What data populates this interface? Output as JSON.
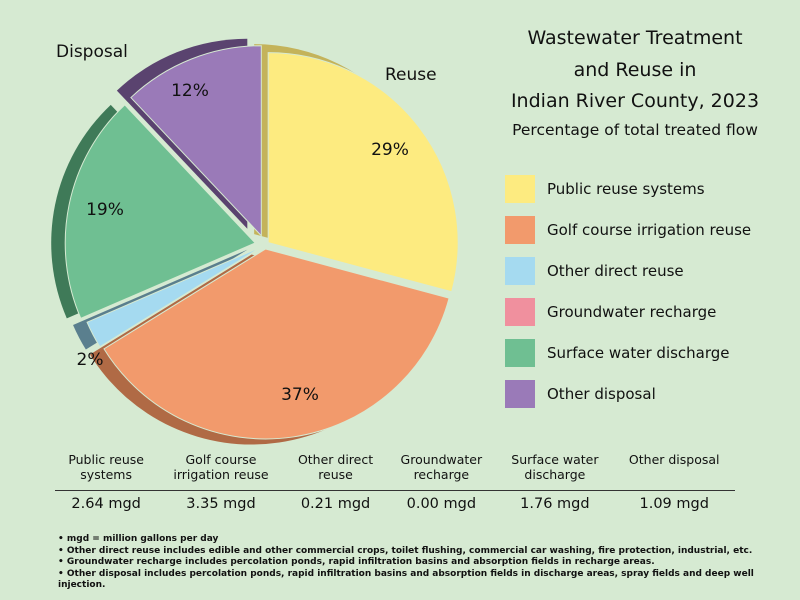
{
  "title_lines": [
    "Wastewater Treatment",
    "and Reuse in",
    "Indian River County, 2023"
  ],
  "subtitle": "Percentage of total treated flow",
  "callouts": {
    "reuse": "Reuse",
    "disposal": "Disposal"
  },
  "chart_data": {
    "type": "pie",
    "title": "Wastewater Treatment and Reuse in Indian River County, 2023",
    "subtitle": "Percentage of total treated flow",
    "slices": [
      {
        "name": "Public reuse systems",
        "percent_label": "29%",
        "mgd": 2.64,
        "color": "#fdeb80",
        "side_color": "#c4b35a",
        "group": "Reuse"
      },
      {
        "name": "Golf course irrigation reuse",
        "percent_label": "37%",
        "mgd": 3.35,
        "color": "#f29a6c",
        "side_color": "#b06a45",
        "group": "Reuse"
      },
      {
        "name": "Other direct reuse",
        "percent_label": "",
        "mgd": 0.21,
        "color": "#a5daf0",
        "side_color": "#5a7f8e",
        "group": "Reuse"
      },
      {
        "name": "Groundwater recharge",
        "percent_label": "",
        "mgd": 0.0,
        "color": "#f0909e",
        "side_color": "#a05a64",
        "group": "Disposal"
      },
      {
        "name": "Surface water discharge",
        "percent_label": "19%",
        "mgd": 1.76,
        "color": "#6fbf92",
        "side_color": "#3f7a58",
        "group": "Disposal"
      },
      {
        "name": "Other disposal",
        "percent_label": "12%",
        "mgd": 1.09,
        "color": "#9a7ab8",
        "side_color": "#5a436f",
        "group": "Disposal"
      }
    ],
    "extra_labels": [
      {
        "text": "2%"
      }
    ],
    "legend_position": "right"
  },
  "table": {
    "headers": [
      [
        "Public reuse",
        "systems"
      ],
      [
        "Golf course",
        "irrigation reuse"
      ],
      [
        "Other direct",
        "reuse"
      ],
      [
        "Groundwater",
        "recharge"
      ],
      [
        "Surface water",
        "discharge"
      ],
      [
        "Other disposal"
      ]
    ],
    "values": [
      "2.64 mgd",
      "3.35 mgd",
      "0.21 mgd",
      "0.00 mgd",
      "1.76 mgd",
      "1.09 mgd"
    ]
  },
  "notes": [
    "mgd = million gallons per day",
    "Other direct reuse includes edible and other commercial crops, toilet flushing, commercial car washing, fire protection, industrial, etc.",
    "Groundwater recharge includes percolation ponds, rapid infiltration basins and absorption fields in recharge areas.",
    "Other disposal includes percolation ponds, rapid infiltration basins and absorption fields in discharge areas, spray fields and deep well injection."
  ]
}
